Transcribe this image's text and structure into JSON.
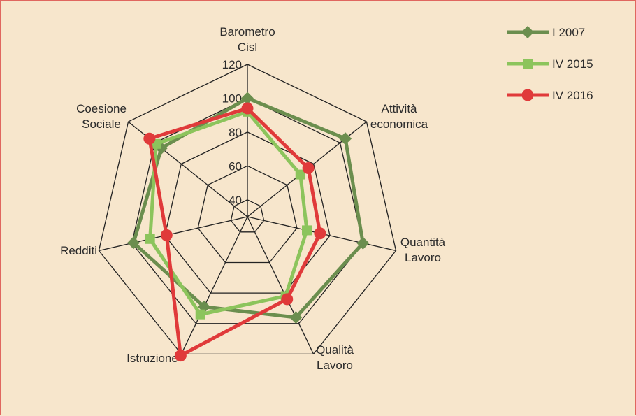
{
  "chart_data": {
    "type": "radar",
    "title": "",
    "axes": [
      [
        "Barometro",
        "Cisl"
      ],
      [
        "Attività",
        "economica"
      ],
      [
        "Quantità",
        "Lavoro"
      ],
      [
        "Qualità",
        "Lavoro"
      ],
      [
        "Istruzione"
      ],
      [
        "Redditi"
      ],
      [
        "Coesione",
        "Sociale"
      ]
    ],
    "r_ticks": [
      40,
      60,
      80,
      100,
      120
    ],
    "r_min": 30,
    "r_max": 120,
    "grid": true,
    "legend_position": "top-right",
    "series": [
      {
        "name": "I 2007",
        "color": "#6b8e4e",
        "marker": "diamond",
        "values": [
          100,
          104,
          100,
          96,
          89,
          99,
          95
        ]
      },
      {
        "name": "IV 2015",
        "color": "#8cc45c",
        "marker": "square",
        "values": [
          92,
          70,
          66,
          82,
          94,
          89,
          99
        ]
      },
      {
        "name": "IV 2016",
        "color": "#e03a3a",
        "marker": "circle",
        "values": [
          94,
          76,
          74,
          84,
          121,
          79,
          104
        ]
      }
    ]
  }
}
